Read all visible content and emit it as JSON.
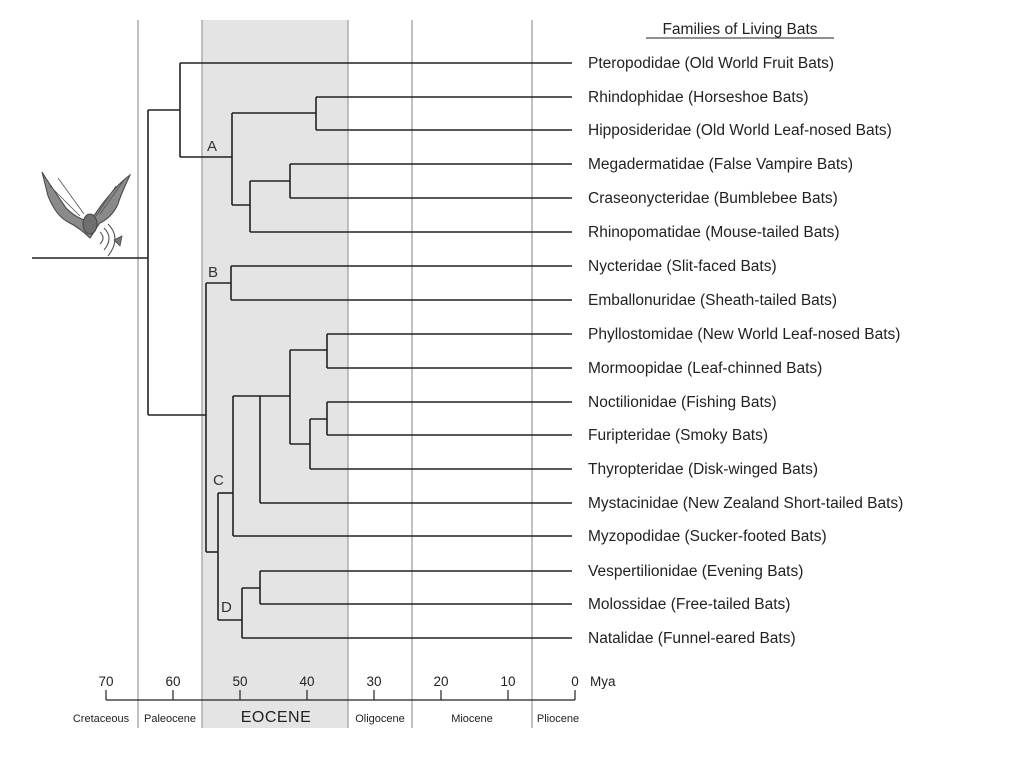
{
  "title": "Families of Living Bats",
  "axis": {
    "unit": "Mya",
    "ticks": [
      "70",
      "60",
      "50",
      "40",
      "30",
      "20",
      "10",
      "0"
    ]
  },
  "epochs": [
    "Cretaceous",
    "Paleocene",
    "EOCENE",
    "Oligocene",
    "Miocene",
    "Pliocene"
  ],
  "clade_labels": [
    "A",
    "B",
    "C",
    "D"
  ],
  "families": [
    "Pteropodidae (Old World Fruit Bats)",
    "Rhindophidae (Horseshoe Bats)",
    "Hipposideridae (Old World Leaf-nosed Bats)",
    "Megadermatidae (False Vampire Bats)",
    "Craseonycteridae (Bumblebee Bats)",
    "Rhinopomatidae (Mouse-tailed Bats)",
    "Nycteridae (Slit-faced Bats)",
    "Emballonuridae (Sheath-tailed Bats)",
    "Phyllostomidae (New World Leaf-nosed Bats)",
    "Mormoopidae (Leaf-chinned Bats)",
    "Noctilionidae (Fishing Bats)",
    "Furipteridae (Smoky Bats)",
    "Thyropteridae (Disk-winged Bats)",
    "Mystacinidae (New Zealand Short-tailed Bats)",
    "Myzopodidae (Sucker-footed Bats)",
    "Vespertilionidae (Evening Bats)",
    "Molossidae (Free-tailed Bats)",
    "Natalidae (Funnel-eared Bats)"
  ],
  "colors": {
    "eocene_band": "#e4e4e4",
    "epoch_divider": "#a8a8a8",
    "branch": "#222222"
  },
  "illustration": "bat-icon"
}
